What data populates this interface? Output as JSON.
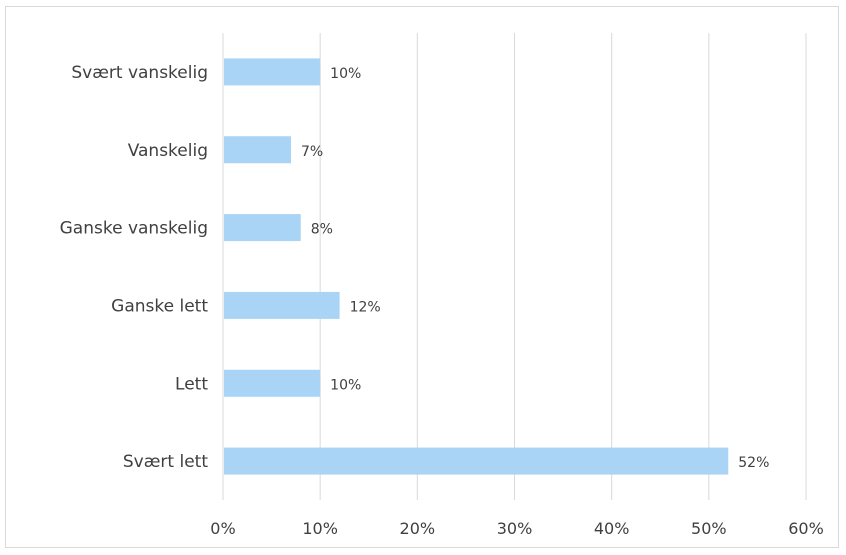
{
  "chart_data": {
    "type": "bar",
    "orientation": "horizontal",
    "categories": [
      "Svært vanskelig",
      "Vanskelig",
      "Ganske vanskelig",
      "Ganske lett",
      "Lett",
      "Svært lett"
    ],
    "values": [
      10,
      7,
      8,
      12,
      10,
      52
    ],
    "data_labels": [
      "10%",
      "7%",
      "8%",
      "12%",
      "10%",
      "52%"
    ],
    "x_ticks": [
      "0%",
      "10%",
      "20%",
      "30%",
      "40%",
      "50%",
      "60%"
    ],
    "xlim": [
      0,
      60
    ],
    "grid": true,
    "legend": "none",
    "bar_color": "#a9d4f5",
    "grid_color": "#d9d9d9",
    "title": "",
    "xlabel": "",
    "ylabel": ""
  }
}
